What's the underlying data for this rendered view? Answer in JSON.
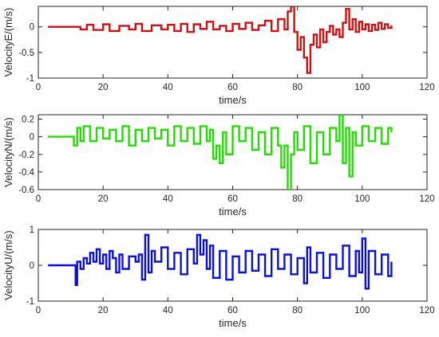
{
  "chart_data": [
    {
      "type": "line",
      "xlabel": "time/s",
      "ylabel": "VelocityE/(m/s)",
      "xlim": [
        0,
        120
      ],
      "ylim": [
        -1,
        0.4
      ],
      "xticks": [
        0,
        20,
        40,
        60,
        80,
        100,
        120
      ],
      "yticks": [
        -1,
        -0.5,
        0
      ],
      "ytick_labels": [
        "-1",
        "-0.5",
        "0"
      ],
      "color": "#cc1111",
      "series": [
        {
          "x": [
            3,
            10,
            11,
            13,
            15,
            17,
            20,
            22,
            25,
            28,
            30,
            32,
            35,
            38,
            40,
            42,
            44,
            46,
            48,
            50,
            52,
            54,
            56,
            58,
            60,
            62,
            64,
            66,
            68,
            70,
            72,
            74,
            76,
            77,
            78,
            79,
            80,
            81,
            82,
            83,
            84,
            85,
            86,
            87,
            88,
            89,
            90,
            91,
            92,
            93,
            94,
            95,
            96,
            97,
            98,
            99,
            100,
            101,
            102,
            103,
            104,
            105,
            106,
            107,
            108,
            109
          ],
          "y": [
            0,
            0,
            0,
            -0.05,
            0.04,
            -0.06,
            0.05,
            -0.08,
            0.02,
            -0.05,
            0.06,
            -0.08,
            0.03,
            -0.05,
            0.04,
            -0.08,
            0.06,
            -0.1,
            0.05,
            -0.04,
            0.1,
            -0.05,
            0.02,
            -0.08,
            0.06,
            -0.04,
            0.08,
            -0.06,
            0.03,
            0.12,
            -0.08,
            0.15,
            -0.05,
            0.3,
            0.4,
            -0.1,
            -0.45,
            -0.2,
            -0.6,
            -0.9,
            -0.35,
            -0.15,
            -0.4,
            -0.05,
            -0.3,
            -0.1,
            0.02,
            -0.15,
            -0.05,
            -0.2,
            0.08,
            0.35,
            -0.05,
            0.15,
            -0.1,
            0.1,
            -0.05,
            0.05,
            -0.08,
            0.04,
            -0.06,
            0.08,
            -0.04,
            0.05,
            -0.02,
            0.03
          ]
        }
      ]
    },
    {
      "type": "line",
      "xlabel": "time/s",
      "ylabel": "VelocityN/(m/s)",
      "xlim": [
        0,
        120
      ],
      "ylim": [
        -0.6,
        0.25
      ],
      "xticks": [
        0,
        20,
        40,
        60,
        80,
        100,
        120
      ],
      "yticks": [
        -0.6,
        -0.4,
        -0.2,
        0,
        0.2
      ],
      "ytick_labels": [
        "-0.6",
        "-0.4",
        "-0.2",
        "0",
        "0.2"
      ],
      "color": "#22dd00",
      "series": [
        {
          "x": [
            3,
            10,
            11,
            12,
            13,
            14,
            16,
            18,
            20,
            22,
            24,
            26,
            28,
            30,
            32,
            34,
            36,
            38,
            40,
            42,
            44,
            46,
            48,
            50,
            52,
            53,
            54,
            55,
            56,
            57,
            58,
            60,
            62,
            64,
            66,
            68,
            70,
            72,
            74,
            75,
            76,
            77,
            78,
            79,
            80,
            82,
            84,
            86,
            88,
            90,
            92,
            93,
            94,
            95,
            96,
            97,
            98,
            100,
            102,
            104,
            106,
            108,
            109
          ],
          "y": [
            0,
            0,
            -0.1,
            0.1,
            -0.05,
            0.12,
            -0.05,
            0.1,
            -0.02,
            0.08,
            -0.05,
            0.12,
            -0.1,
            0.08,
            -0.05,
            0.1,
            -0.02,
            0.08,
            -0.1,
            0.12,
            -0.05,
            0.1,
            -0.08,
            0.12,
            -0.05,
            0.08,
            -0.25,
            -0.1,
            -0.3,
            0.05,
            -0.2,
            0.12,
            -0.05,
            0.1,
            -0.15,
            0.05,
            -0.2,
            0.1,
            -0.1,
            -0.35,
            -0.1,
            -0.6,
            -0.2,
            0.05,
            -0.15,
            0.12,
            -0.3,
            0.05,
            -0.2,
            0.1,
            -0.05,
            0.25,
            -0.3,
            0.1,
            -0.45,
            0.05,
            -0.1,
            0.12,
            -0.05,
            0.1,
            -0.08,
            0.1,
            0.05
          ]
        }
      ]
    },
    {
      "type": "line",
      "xlabel": "time/s",
      "ylabel": "VelocityU/(m/s)",
      "xlim": [
        0,
        120
      ],
      "ylim": [
        -1,
        1
      ],
      "xticks": [
        0,
        20,
        40,
        60,
        80,
        100,
        120
      ],
      "yticks": [
        -1,
        0,
        1
      ],
      "ytick_labels": [
        "-1",
        "0",
        "1"
      ],
      "color": "#0a10d8",
      "series": [
        {
          "x": [
            3,
            11,
            11.5,
            12,
            13,
            14,
            15,
            16,
            17,
            18,
            19,
            20,
            21,
            22,
            23,
            24,
            25,
            26,
            28,
            30,
            31,
            32,
            33,
            34,
            35,
            36,
            38,
            40,
            42,
            44,
            46,
            48,
            49,
            50,
            51,
            52,
            53,
            54,
            56,
            58,
            60,
            62,
            64,
            66,
            68,
            70,
            72,
            74,
            76,
            78,
            80,
            82,
            83,
            84,
            86,
            88,
            90,
            92,
            94,
            96,
            98,
            99,
            100,
            101,
            102,
            104,
            106,
            108,
            109
          ],
          "y": [
            0,
            0,
            -0.55,
            0.1,
            -0.1,
            0.2,
            0.05,
            0.35,
            0.1,
            0.45,
            0.05,
            0.3,
            -0.1,
            0.4,
            0.2,
            -0.2,
            0.3,
            -0.1,
            0.25,
            0.1,
            0.3,
            -0.4,
            0.85,
            -0.2,
            0.4,
            0.1,
            0.5,
            -0.1,
            0.35,
            -0.25,
            0.45,
            0.05,
            0.85,
            0.3,
            0.7,
            -0.1,
            0.55,
            -0.35,
            0.4,
            -0.4,
            0.25,
            -0.2,
            0.4,
            -0.15,
            0.3,
            -0.3,
            0.45,
            -0.1,
            0.3,
            -0.25,
            0.2,
            -0.5,
            0.5,
            -0.2,
            0.35,
            -0.35,
            0.3,
            -0.1,
            0.55,
            -0.3,
            0.4,
            -0.2,
            0.75,
            -0.65,
            0.4,
            -0.25,
            0.3,
            -0.3,
            0.1
          ]
        }
      ]
    }
  ]
}
